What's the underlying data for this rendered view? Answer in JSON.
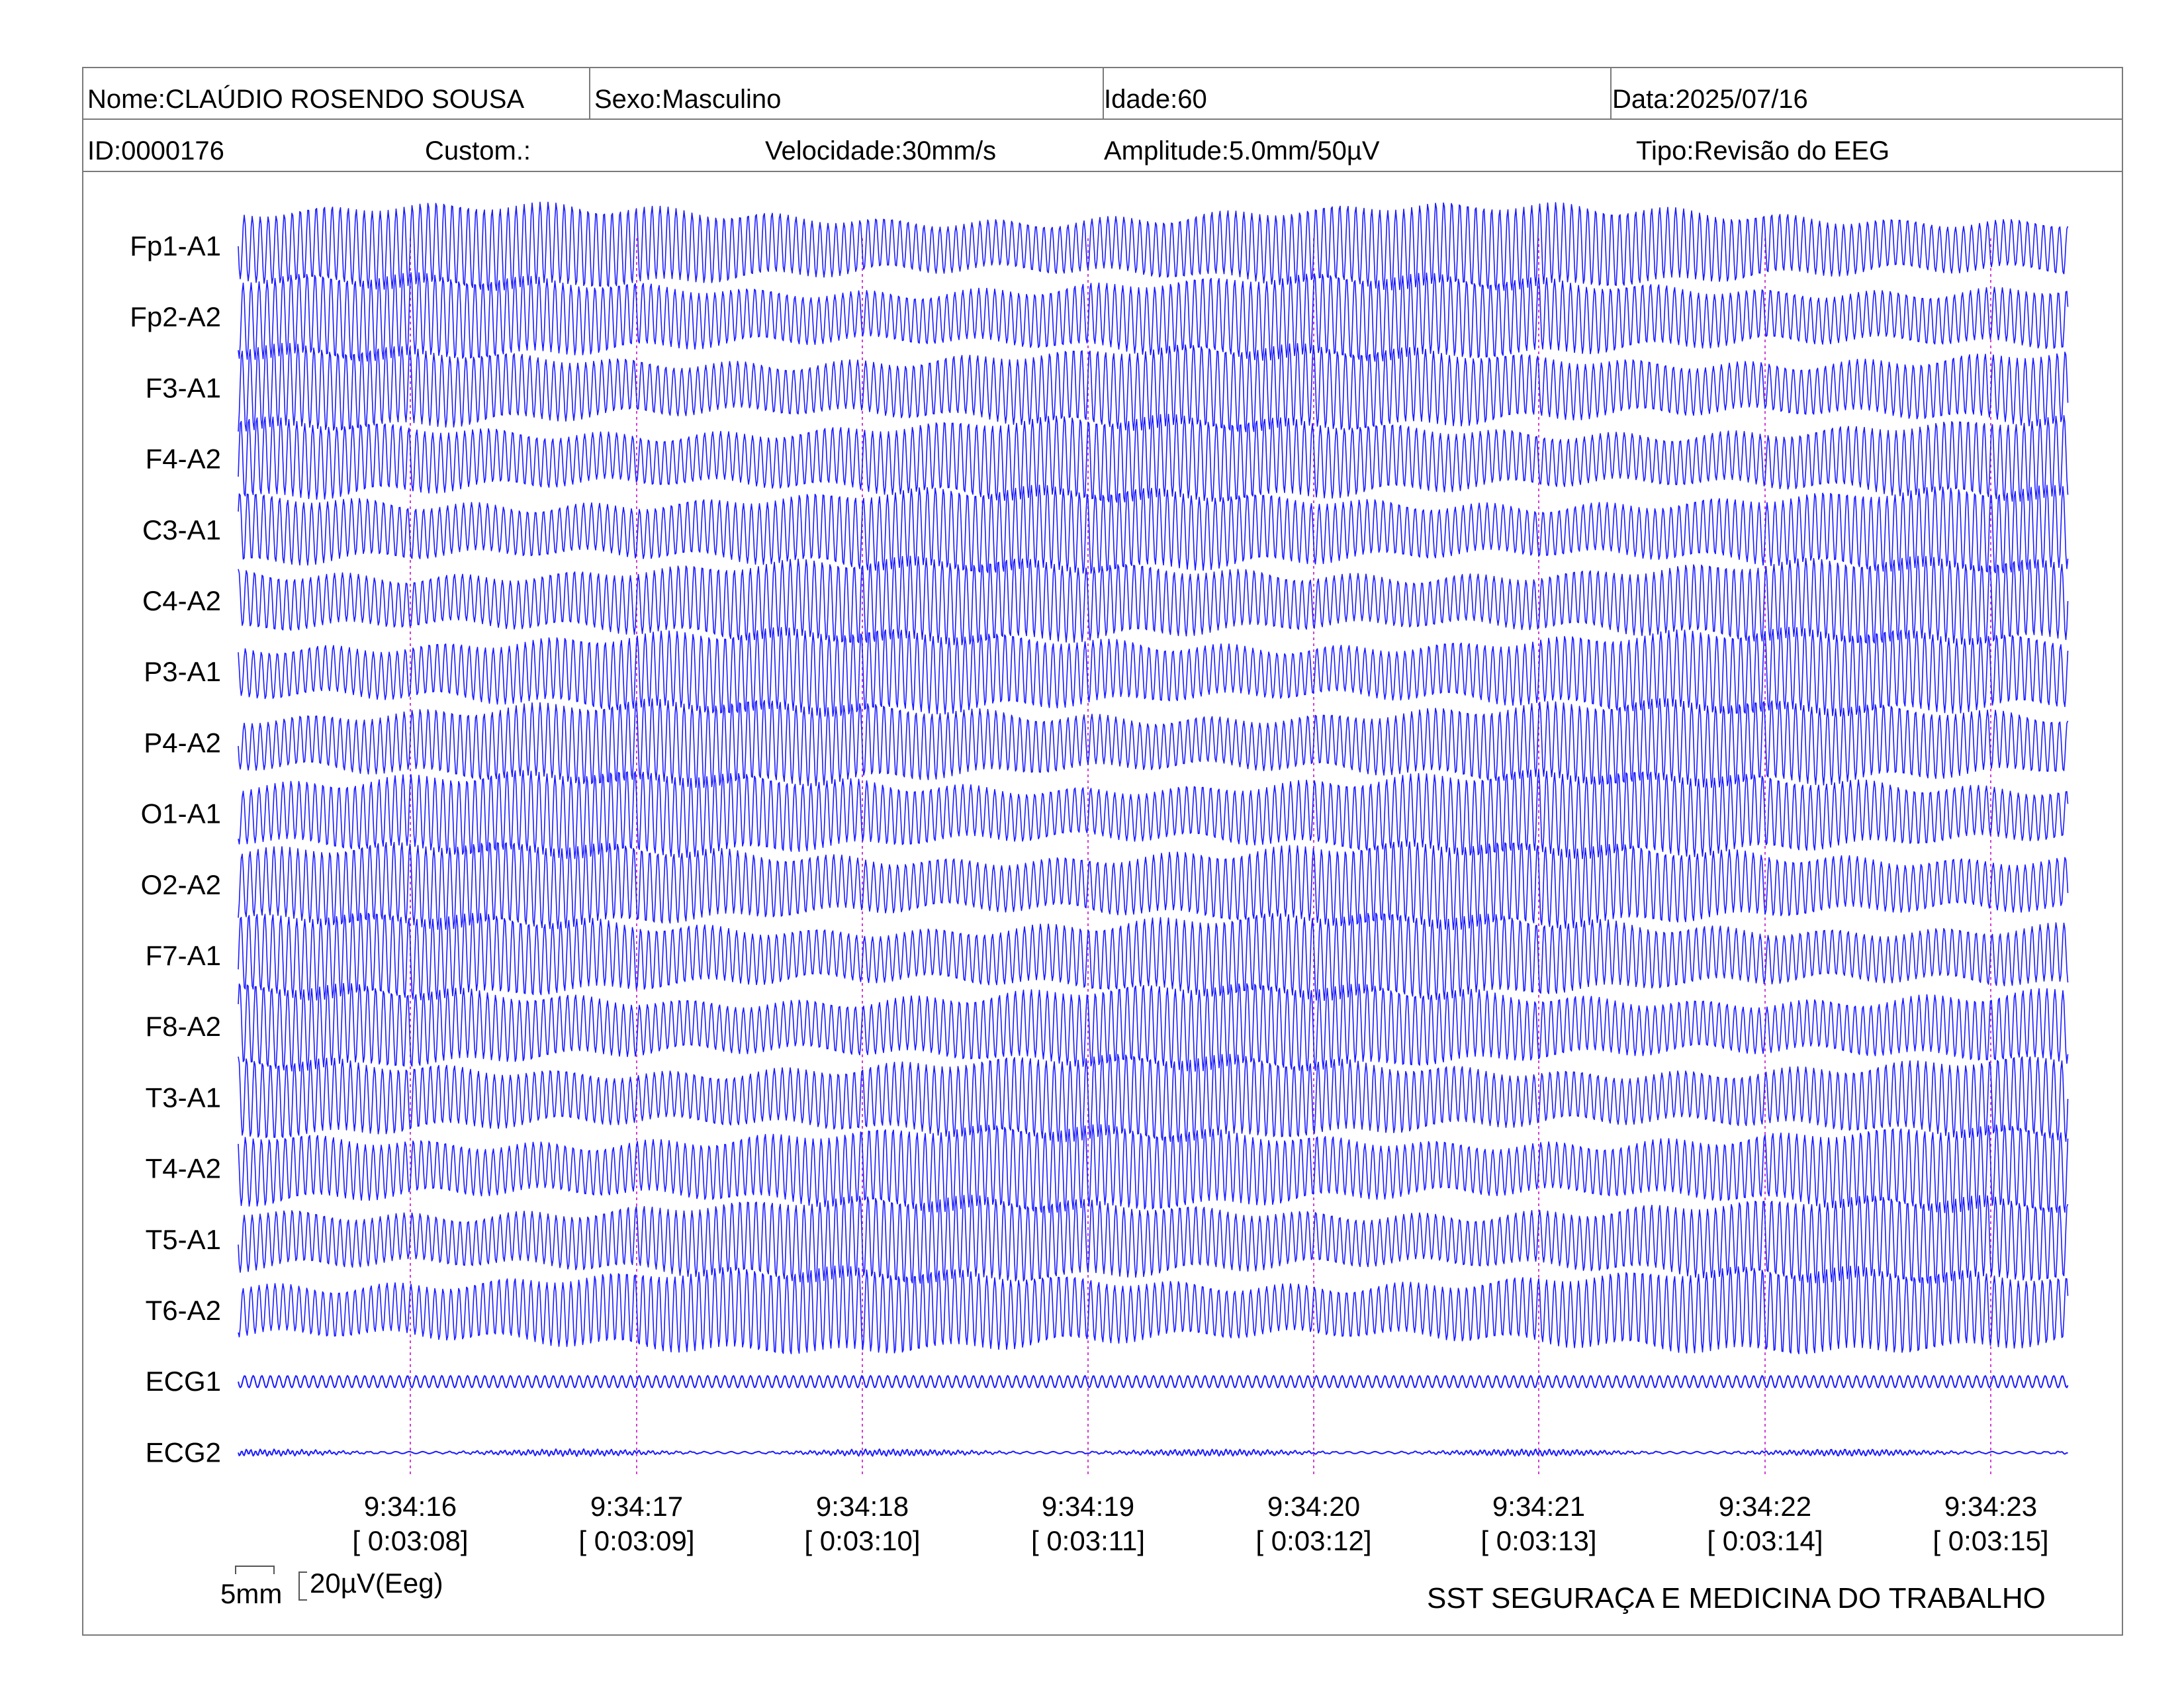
{
  "header": {
    "nome": "Nome:CLAÚDIO ROSENDO SOUSA",
    "sexo": "Sexo:Masculino",
    "idade": "Idade:60",
    "data": "Data:2025/07/16",
    "id": "ID:0000176",
    "custom": "Custom.:",
    "velocidade": "Velocidade:30mm/s",
    "amplitude": "Amplitude:5.0mm/50µV",
    "tipo": "Tipo:Revisão do EEG"
  },
  "channels": [
    "Fp1-A1",
    "Fp2-A2",
    "F3-A1",
    "F4-A2",
    "C3-A1",
    "C4-A2",
    "P3-A1",
    "P4-A2",
    "O1-A1",
    "O2-A2",
    "F7-A1",
    "F8-A2",
    "T3-A1",
    "T4-A2",
    "T5-A1",
    "T6-A2",
    "ECG1",
    "ECG2"
  ],
  "time_markers": [
    {
      "clock": "9:34:16",
      "elapsed": "[ 0:03:08]"
    },
    {
      "clock": "9:34:17",
      "elapsed": "[ 0:03:09]"
    },
    {
      "clock": "9:34:18",
      "elapsed": "[ 0:03:10]"
    },
    {
      "clock": "9:34:19",
      "elapsed": "[ 0:03:11]"
    },
    {
      "clock": "9:34:20",
      "elapsed": "[ 0:03:12]"
    },
    {
      "clock": "9:34:21",
      "elapsed": "[ 0:03:13]"
    },
    {
      "clock": "9:34:22",
      "elapsed": "[ 0:03:14]"
    },
    {
      "clock": "9:34:23",
      "elapsed": "[ 0:03:15]"
    }
  ],
  "scale": {
    "time": "5mm",
    "amplitude": "20µV(Eeg)"
  },
  "footer": {
    "company": "SST SEGURAÇA E MEDICINA DO TRABALHO"
  },
  "colors": {
    "trace": "#1a1aff",
    "marker": "#d040d0",
    "border": "#7a7a7a"
  }
}
